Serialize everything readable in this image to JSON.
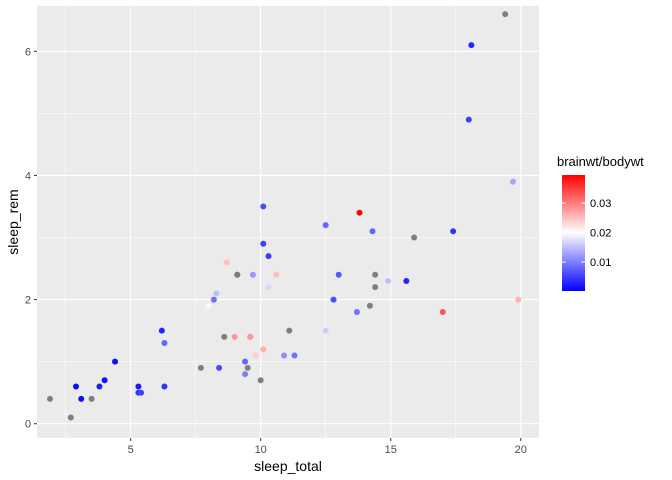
{
  "chart_data": {
    "type": "scatter",
    "title": "",
    "xlabel": "sleep_total",
    "ylabel": "sleep_rem",
    "xlim": [
      1.4,
      20.7
    ],
    "ylim": [
      -0.23,
      6.73
    ],
    "x_ticks": [
      5,
      10,
      15,
      20
    ],
    "y_ticks": [
      0,
      2,
      4,
      6
    ],
    "grid": true,
    "legend": {
      "title": "brainwt/bodywt",
      "type": "colorbar",
      "position": "right",
      "range": [
        0.0002,
        0.0395
      ],
      "ticks": [
        0.01,
        0.02,
        0.03
      ],
      "colors": {
        "low": "#0000ff",
        "mid": "#ffffff",
        "high": "#ff0000"
      },
      "midpoint": 0.02
    },
    "na_color": "#7f7f7f",
    "points": [
      {
        "x": 1.9,
        "y": 0.4,
        "c": null
      },
      {
        "x": 2.7,
        "y": 0.1,
        "c": null
      },
      {
        "x": 2.9,
        "y": 0.6,
        "c": 0.001
      },
      {
        "x": 3.1,
        "y": 0.4,
        "c": 0.0012
      },
      {
        "x": 3.5,
        "y": 0.4,
        "c": null
      },
      {
        "x": 3.8,
        "y": 0.6,
        "c": 0.0025
      },
      {
        "x": 4.0,
        "y": 0.7,
        "c": 0.0015
      },
      {
        "x": 4.4,
        "y": 1.0,
        "c": 0.0012
      },
      {
        "x": 5.3,
        "y": 0.6,
        "c": 0.002
      },
      {
        "x": 5.3,
        "y": 0.5,
        "c": 0.004
      },
      {
        "x": 5.4,
        "y": 0.5,
        "c": 0.005
      },
      {
        "x": 6.2,
        "y": 1.5,
        "c": 0.003
      },
      {
        "x": 6.3,
        "y": 0.6,
        "c": 0.004
      },
      {
        "x": 6.3,
        "y": 1.3,
        "c": 0.008
      },
      {
        "x": 7.7,
        "y": 0.9,
        "c": null
      },
      {
        "x": 8.0,
        "y": 1.9,
        "c": 0.0195
      },
      {
        "x": 8.2,
        "y": 2.0,
        "c": 0.009
      },
      {
        "x": 8.3,
        "y": 2.1,
        "c": 0.015
      },
      {
        "x": 8.4,
        "y": 0.9,
        "c": 0.006
      },
      {
        "x": 8.6,
        "y": 1.4,
        "c": null
      },
      {
        "x": 8.7,
        "y": 2.6,
        "c": 0.025
      },
      {
        "x": 9.0,
        "y": 1.4,
        "c": 0.028
      },
      {
        "x": 9.1,
        "y": 2.4,
        "c": 0.005
      },
      {
        "x": 9.1,
        "y": 2.4,
        "c": null
      },
      {
        "x": 9.4,
        "y": 1.0,
        "c": 0.008
      },
      {
        "x": 9.4,
        "y": 0.8,
        "c": 0.01
      },
      {
        "x": 9.5,
        "y": 0.9,
        "c": null
      },
      {
        "x": 9.6,
        "y": 1.4,
        "c": 0.012
      },
      {
        "x": 9.6,
        "y": 1.4,
        "c": 0.028
      },
      {
        "x": 9.7,
        "y": 2.4,
        "c": 0.012
      },
      {
        "x": 9.8,
        "y": 1.1,
        "c": 0.024
      },
      {
        "x": 10.0,
        "y": 0.7,
        "c": null
      },
      {
        "x": 10.1,
        "y": 3.5,
        "c": 0.006
      },
      {
        "x": 10.1,
        "y": 2.9,
        "c": 0.005
      },
      {
        "x": 10.1,
        "y": 1.2,
        "c": 0.026
      },
      {
        "x": 10.3,
        "y": 2.2,
        "c": 0.017
      },
      {
        "x": 10.3,
        "y": 2.7,
        "c": 0.005
      },
      {
        "x": 10.6,
        "y": 2.4,
        "c": 0.025
      },
      {
        "x": 10.9,
        "y": 1.1,
        "c": 0.011
      },
      {
        "x": 11.1,
        "y": 1.5,
        "c": null
      },
      {
        "x": 11.3,
        "y": 1.1,
        "c": 0.009
      },
      {
        "x": 12.5,
        "y": 3.2,
        "c": 0.008
      },
      {
        "x": 12.5,
        "y": 1.5,
        "c": 0.016
      },
      {
        "x": 12.8,
        "y": 2.0,
        "c": 0.006
      },
      {
        "x": 13.0,
        "y": 2.4,
        "c": 0.007
      },
      {
        "x": 13.7,
        "y": 1.8,
        "c": 0.009
      },
      {
        "x": 13.8,
        "y": 3.4,
        "c": 0.0395
      },
      {
        "x": 14.2,
        "y": 1.9,
        "c": null
      },
      {
        "x": 14.3,
        "y": 3.1,
        "c": 0.008
      },
      {
        "x": 14.4,
        "y": 2.4,
        "c": null
      },
      {
        "x": 14.4,
        "y": 2.2,
        "c": null
      },
      {
        "x": 14.9,
        "y": 2.3,
        "c": 0.015
      },
      {
        "x": 15.6,
        "y": 2.3,
        "c": 0.003
      },
      {
        "x": 15.9,
        "y": 3.0,
        "c": null
      },
      {
        "x": 17.0,
        "y": 1.8,
        "c": 0.033
      },
      {
        "x": 17.4,
        "y": 3.1,
        "c": 0.004
      },
      {
        "x": 18.0,
        "y": 4.9,
        "c": 0.005
      },
      {
        "x": 18.1,
        "y": 6.1,
        "c": 0.003
      },
      {
        "x": 19.4,
        "y": 6.6,
        "c": null
      },
      {
        "x": 19.7,
        "y": 3.9,
        "c": 0.013
      },
      {
        "x": 19.9,
        "y": 2.0,
        "c": 0.026
      }
    ]
  }
}
